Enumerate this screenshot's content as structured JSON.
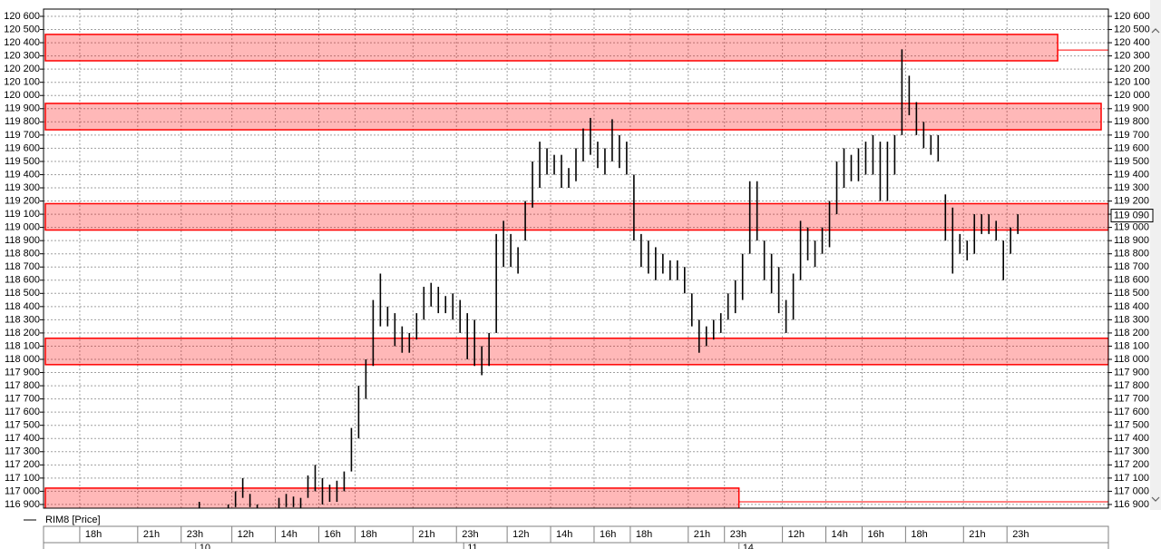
{
  "chart_data": {
    "type": "range",
    "categories": [
      null,
      null,
      null,
      null,
      null,
      "18h",
      null,
      null,
      null,
      null,
      null,
      null,
      null,
      "21h",
      null,
      null,
      null,
      null,
      null,
      "23h",
      null,
      null,
      null,
      null,
      null,
      null,
      "12h",
      null,
      null,
      null,
      null,
      null,
      "14h",
      null,
      null,
      null,
      null,
      null,
      "16h",
      null,
      null,
      null,
      null,
      "18h",
      null,
      null,
      null,
      null,
      null,
      null,
      null,
      "21h",
      null,
      null,
      null,
      null,
      null,
      "23h",
      null,
      null,
      null,
      null,
      null,
      null,
      "12h",
      null,
      null,
      null,
      null,
      null,
      "14h",
      null,
      null,
      null,
      null,
      null,
      "16h",
      null,
      null,
      null,
      null,
      "18h",
      null,
      null,
      null,
      null,
      null,
      null,
      null,
      "21h",
      null,
      null,
      null,
      null,
      "23h",
      null,
      null,
      null,
      null,
      null,
      null,
      null,
      "12h",
      null,
      null,
      null,
      null,
      null,
      "14h",
      null,
      null,
      null,
      null,
      "16h",
      null,
      null,
      null,
      null,
      null,
      "18h",
      null,
      null,
      null,
      null,
      null,
      null,
      null,
      "21h",
      null,
      null,
      null,
      null,
      null,
      "23h",
      null,
      null,
      null,
      null,
      null,
      null,
      null,
      null,
      null,
      null,
      null,
      null,
      null
    ],
    "date_categories": [
      null,
      null,
      null,
      null,
      null,
      null,
      null,
      null,
      null,
      null,
      null,
      null,
      null,
      null,
      null,
      null,
      null,
      null,
      null,
      null,
      null,
      "10",
      null,
      null,
      null,
      null,
      null,
      null,
      null,
      null,
      null,
      null,
      null,
      null,
      null,
      null,
      null,
      null,
      null,
      null,
      null,
      null,
      null,
      null,
      null,
      null,
      null,
      null,
      null,
      null,
      null,
      null,
      null,
      null,
      null,
      null,
      null,
      null,
      "11",
      null,
      null,
      null,
      null,
      null,
      null,
      null,
      null,
      null,
      null,
      null,
      null,
      null,
      null,
      null,
      null,
      null,
      null,
      null,
      null,
      null,
      null,
      null,
      null,
      null,
      null,
      null,
      null,
      null,
      null,
      null,
      null,
      null,
      null,
      null,
      null,
      null,
      "14",
      null,
      null,
      null,
      null,
      null,
      null,
      null,
      null,
      null,
      null,
      null,
      null,
      null,
      null,
      null,
      null,
      null,
      null,
      null,
      null,
      null,
      null,
      null,
      null,
      null,
      null,
      null,
      null,
      null,
      null,
      null,
      null,
      null,
      null,
      null,
      null,
      null,
      null,
      null,
      null,
      null,
      null,
      null,
      null,
      null,
      null,
      null,
      null,
      null,
      null
    ],
    "series": [
      {
        "name": "RIM8 [Price]",
        "color": "#000000",
        "high": [
          null,
          null,
          null,
          null,
          null,
          null,
          null,
          null,
          null,
          null,
          null,
          null,
          null,
          null,
          null,
          null,
          null,
          null,
          null,
          null,
          null,
          116920,
          null,
          null,
          null,
          116900,
          117000,
          117100,
          116980,
          116900,
          null,
          null,
          116950,
          116980,
          116960,
          116950,
          117120,
          117200,
          117100,
          117050,
          117080,
          117150,
          117480,
          117800,
          118000,
          118450,
          118650,
          118400,
          118350,
          118250,
          118200,
          118350,
          118550,
          118580,
          118550,
          118480,
          118500,
          118450,
          118350,
          118300,
          118100,
          118200,
          118950,
          119050,
          118950,
          118850,
          119200,
          119500,
          119650,
          119600,
          119550,
          119550,
          119450,
          119600,
          119750,
          119830,
          119650,
          119600,
          119820,
          119700,
          119650,
          119400,
          118950,
          118900,
          118850,
          118800,
          118750,
          118750,
          118700,
          118500,
          118300,
          118250,
          118300,
          118350,
          118500,
          118600,
          118800,
          119350,
          119350,
          118900,
          118800,
          118700,
          118450,
          118650,
          119050,
          119000,
          118900,
          119000,
          119200,
          119500,
          119600,
          119550,
          119600,
          119650,
          119700,
          119650,
          119650,
          119700,
          120350,
          120150,
          119950,
          119800,
          119700,
          119700,
          119250,
          119150,
          118950,
          118900,
          119100,
          119100,
          119100,
          119050,
          118900,
          119000,
          119100,
          null,
          null,
          null,
          null,
          null,
          null,
          null,
          null,
          null,
          null,
          null,
          null
        ],
        "low": [
          null,
          null,
          null,
          null,
          null,
          null,
          null,
          null,
          null,
          null,
          null,
          null,
          null,
          null,
          null,
          null,
          null,
          null,
          null,
          null,
          null,
          116870,
          null,
          null,
          null,
          116870,
          116880,
          116950,
          116880,
          116870,
          null,
          null,
          116870,
          116880,
          116880,
          116870,
          116950,
          117000,
          116900,
          116920,
          116920,
          117000,
          117150,
          117400,
          117700,
          117950,
          118250,
          118250,
          118100,
          118050,
          118050,
          118150,
          118300,
          118400,
          118350,
          118350,
          118300,
          118200,
          118000,
          117950,
          117880,
          117950,
          118200,
          118700,
          118700,
          118650,
          118900,
          119150,
          119300,
          119400,
          119400,
          119300,
          119300,
          119350,
          119500,
          119550,
          119450,
          119400,
          119500,
          119450,
          119400,
          118900,
          118700,
          118650,
          118600,
          118650,
          118600,
          118600,
          118500,
          118250,
          118050,
          118100,
          118150,
          118200,
          118300,
          118350,
          118450,
          118800,
          118900,
          118600,
          118500,
          118350,
          118200,
          118300,
          118600,
          118750,
          118700,
          118800,
          118850,
          119100,
          119300,
          119350,
          119350,
          119400,
          119400,
          119200,
          119200,
          119400,
          119700,
          119850,
          119700,
          119600,
          119550,
          119500,
          118900,
          118650,
          118800,
          118750,
          118800,
          118950,
          118950,
          118900,
          118600,
          118800,
          118950,
          null,
          null,
          null,
          null,
          null,
          null,
          null,
          null,
          null,
          null,
          null,
          null
        ]
      }
    ],
    "zones": [
      {
        "high": 120463,
        "low": 120263,
        "end": 140,
        "level": 120345
      },
      {
        "high": 119940,
        "low": 119740,
        "end": 146
      },
      {
        "high": 119180,
        "low": 118980,
        "end": 147
      },
      {
        "high": 118160,
        "low": 117960,
        "end": 147
      },
      {
        "high": 117024,
        "low": 116860,
        "end": 96,
        "level": 116920
      }
    ],
    "zone_color": "#ff0000",
    "last_price": {
      "value": 119090,
      "label": "119 090"
    },
    "ylim": [
      116872,
      120655
    ],
    "yticks": [
      {
        "value": 116900,
        "label": "116 900"
      },
      {
        "value": 117000,
        "label": "117 000"
      },
      {
        "value": 117100,
        "label": "117 100"
      },
      {
        "value": 117200,
        "label": "117 200"
      },
      {
        "value": 117300,
        "label": "117 300"
      },
      {
        "value": 117400,
        "label": "117 400"
      },
      {
        "value": 117500,
        "label": "117 500"
      },
      {
        "value": 117600,
        "label": "117 600"
      },
      {
        "value": 117700,
        "label": "117 700"
      },
      {
        "value": 117800,
        "label": "117 800"
      },
      {
        "value": 117900,
        "label": "117 900"
      },
      {
        "value": 118000,
        "label": "118 000"
      },
      {
        "value": 118100,
        "label": "118 100"
      },
      {
        "value": 118200,
        "label": "118 200"
      },
      {
        "value": 118300,
        "label": "118 300"
      },
      {
        "value": 118400,
        "label": "118 400"
      },
      {
        "value": 118500,
        "label": "118 500"
      },
      {
        "value": 118600,
        "label": "118 600"
      },
      {
        "value": 118700,
        "label": "118 700"
      },
      {
        "value": 118800,
        "label": "118 800"
      },
      {
        "value": 118900,
        "label": "118 900"
      },
      {
        "value": 119000,
        "label": "119 000"
      },
      {
        "value": 119100,
        "label": "119 100"
      },
      {
        "value": 119200,
        "label": "119 200"
      },
      {
        "value": 119300,
        "label": "119 300"
      },
      {
        "value": 119400,
        "label": "119 400"
      },
      {
        "value": 119500,
        "label": "119 500"
      },
      {
        "value": 119600,
        "label": "119 600"
      },
      {
        "value": 119700,
        "label": "119 700"
      },
      {
        "value": 119800,
        "label": "119 800"
      },
      {
        "value": 119900,
        "label": "119 900"
      },
      {
        "value": 120000,
        "label": "120 000"
      },
      {
        "value": 120100,
        "label": "120 100"
      },
      {
        "value": 120200,
        "label": "120 200"
      },
      {
        "value": 120300,
        "label": "120 300"
      },
      {
        "value": 120400,
        "label": "120 400"
      },
      {
        "value": 120500,
        "label": "120 500"
      },
      {
        "value": 120600,
        "label": "120 600"
      }
    ],
    "grid": true
  }
}
